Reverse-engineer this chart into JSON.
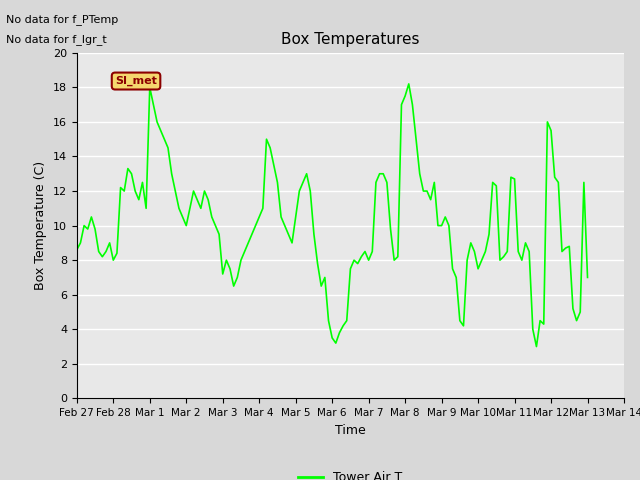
{
  "title": "Box Temperatures",
  "xlabel": "Time",
  "ylabel": "Box Temperature (C)",
  "text_no_data_1": "No data for f_PTemp",
  "text_no_data_2": "No data for f_lgr_t",
  "si_met_label": "SI_met",
  "legend_label": "Tower Air T",
  "ylim": [
    0,
    20
  ],
  "bg_color": "#d8d8d8",
  "plot_bg_color": "#e8e8e8",
  "line_color": "#00ff00",
  "x_tick_labels": [
    "Feb 27",
    "Feb 28",
    "Mar 1",
    "Mar 2",
    "Mar 3",
    "Mar 4",
    "Mar 5",
    "Mar 6",
    "Mar 7",
    "Mar 8",
    "Mar 9",
    "Mar 10",
    "Mar 11",
    "Mar 12",
    "Mar 13",
    "Mar 14"
  ],
  "x_tick_positions": [
    0,
    1,
    2,
    3,
    4,
    5,
    6,
    7,
    8,
    9,
    10,
    11,
    12,
    13,
    14,
    15
  ],
  "y_tick_values": [
    0,
    2,
    4,
    6,
    8,
    10,
    12,
    14,
    16,
    18,
    20
  ],
  "data_x": [
    0.0,
    0.1,
    0.2,
    0.3,
    0.4,
    0.5,
    0.6,
    0.7,
    0.8,
    0.9,
    1.0,
    1.1,
    1.2,
    1.3,
    1.4,
    1.5,
    1.6,
    1.7,
    1.8,
    1.9,
    2.0,
    2.1,
    2.2,
    2.3,
    2.4,
    2.5,
    2.6,
    2.7,
    2.8,
    2.9,
    3.0,
    3.1,
    3.2,
    3.3,
    3.4,
    3.5,
    3.6,
    3.7,
    3.8,
    3.9,
    4.0,
    4.1,
    4.2,
    4.3,
    4.4,
    4.5,
    4.6,
    4.7,
    4.8,
    4.9,
    5.0,
    5.1,
    5.2,
    5.3,
    5.4,
    5.5,
    5.6,
    5.7,
    5.8,
    5.9,
    6.0,
    6.1,
    6.2,
    6.3,
    6.4,
    6.5,
    6.6,
    6.7,
    6.8,
    6.9,
    7.0,
    7.1,
    7.2,
    7.3,
    7.4,
    7.5,
    7.6,
    7.7,
    7.8,
    7.9,
    8.0,
    8.1,
    8.2,
    8.3,
    8.4,
    8.5,
    8.6,
    8.7,
    8.8,
    8.9,
    9.0,
    9.1,
    9.2,
    9.3,
    9.4,
    9.5,
    9.6,
    9.7,
    9.8,
    9.9,
    10.0,
    10.1,
    10.2,
    10.3,
    10.4,
    10.5,
    10.6,
    10.7,
    10.8,
    10.9,
    11.0,
    11.1,
    11.2,
    11.3,
    11.4,
    11.5,
    11.6,
    11.7,
    11.8,
    11.9,
    12.0,
    12.1,
    12.2,
    12.3,
    12.4,
    12.5,
    12.6,
    12.7,
    12.8,
    12.9,
    13.0,
    13.1,
    13.2,
    13.3,
    13.4,
    13.5,
    13.6,
    13.7,
    13.8,
    13.9,
    14.0
  ],
  "data_y": [
    8.6,
    9.0,
    10.0,
    9.8,
    10.5,
    9.8,
    8.5,
    8.2,
    8.5,
    9.0,
    8.0,
    8.4,
    12.2,
    12.0,
    13.3,
    13.0,
    12.0,
    11.5,
    12.5,
    11.0,
    18.0,
    17.0,
    16.0,
    15.5,
    15.0,
    14.5,
    13.0,
    12.0,
    11.0,
    10.5,
    10.0,
    11.0,
    12.0,
    11.5,
    11.0,
    12.0,
    11.5,
    10.5,
    10.0,
    9.5,
    7.2,
    8.0,
    7.5,
    6.5,
    7.0,
    8.0,
    8.5,
    9.0,
    9.5,
    10.0,
    10.5,
    11.0,
    15.0,
    14.5,
    13.5,
    12.5,
    10.5,
    10.0,
    9.5,
    9.0,
    10.5,
    12.0,
    12.5,
    13.0,
    12.0,
    9.5,
    7.8,
    6.5,
    7.0,
    4.5,
    3.5,
    3.2,
    3.8,
    4.2,
    4.5,
    7.5,
    8.0,
    7.8,
    8.2,
    8.5,
    8.0,
    8.5,
    12.5,
    13.0,
    13.0,
    12.5,
    9.8,
    8.0,
    8.2,
    17.0,
    17.5,
    18.2,
    17.0,
    15.0,
    13.0,
    12.0,
    12.0,
    11.5,
    12.5,
    10.0,
    10.0,
    10.5,
    10.0,
    7.5,
    7.0,
    4.5,
    4.2,
    8.0,
    9.0,
    8.5,
    7.5,
    8.0,
    8.5,
    9.5,
    12.5,
    12.3,
    8.0,
    8.2,
    8.5,
    12.8,
    12.7,
    8.5,
    8.0,
    9.0,
    8.5,
    4.0,
    3.0,
    4.5,
    4.3,
    16.0,
    15.5,
    12.8,
    12.5,
    8.5,
    8.7,
    8.8,
    5.2,
    4.5,
    5.0,
    12.5,
    7.0
  ]
}
